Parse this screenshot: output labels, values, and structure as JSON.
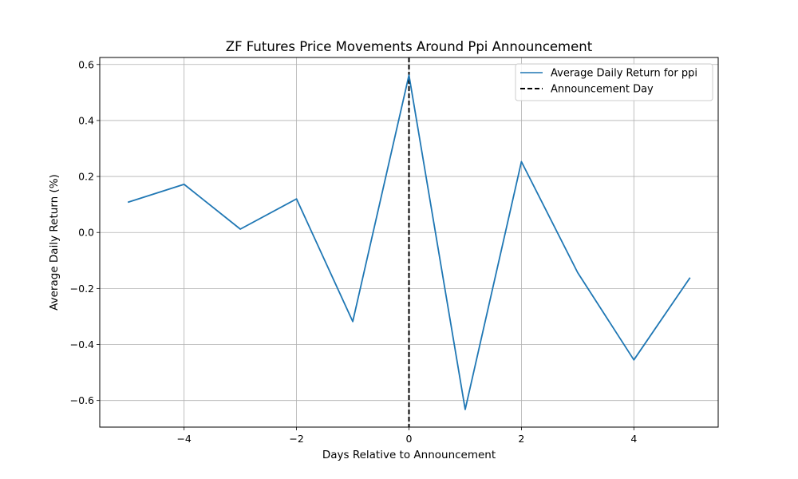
{
  "chart_data": {
    "type": "line",
    "title": "ZF Futures Price Movements Around Ppi Announcement",
    "xlabel": "Days Relative to Announcement",
    "ylabel": "Average Daily Return (%)",
    "xlim": [
      -5.5,
      5.5
    ],
    "ylim": [
      -0.695,
      0.625
    ],
    "xticks": [
      -4,
      -2,
      0,
      2,
      4
    ],
    "xtick_labels": [
      "−4",
      "−2",
      "0",
      "2",
      "4"
    ],
    "yticks": [
      -0.6,
      -0.4,
      -0.2,
      0.0,
      0.2,
      0.4,
      0.6
    ],
    "ytick_labels": [
      "−0.6",
      "−0.4",
      "−0.2",
      "0.0",
      "0.2",
      "0.4",
      "0.6"
    ],
    "grid": true,
    "legend_position": "top-right",
    "series": [
      {
        "name": "Average Daily Return for ppi",
        "color": "#1f77b4",
        "x": [
          -5,
          -4,
          -3,
          -2,
          -1,
          0,
          1,
          2,
          3,
          4,
          5
        ],
        "y": [
          0.108,
          0.172,
          0.012,
          0.12,
          -0.318,
          0.562,
          -0.632,
          0.253,
          -0.143,
          -0.455,
          -0.161
        ]
      }
    ],
    "vline": {
      "name": "Announcement Day",
      "x": 0,
      "color": "#000000",
      "style": "dashed"
    }
  }
}
